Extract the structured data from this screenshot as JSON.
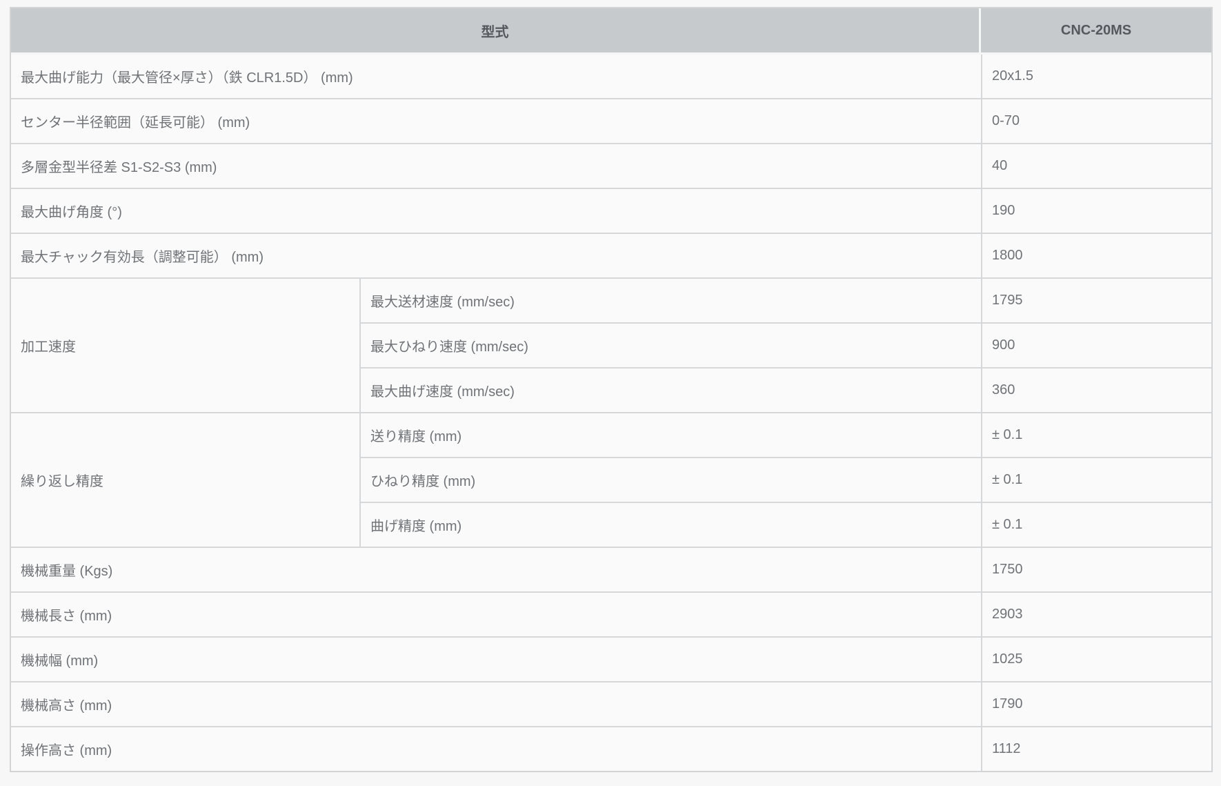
{
  "table": {
    "header": {
      "model_label": "型式",
      "model_value": "CNC-20MS"
    },
    "rows": [
      {
        "label": "最大曲げ能力（最大管径×厚さ）（鉄 CLR1.5D） (mm)",
        "value": "20x1.5"
      },
      {
        "label": "センター半径範囲（延長可能） (mm)",
        "value": "0-70"
      },
      {
        "label": "多層金型半径差 S1-S2-S3 (mm)",
        "value": "40"
      },
      {
        "label": "最大曲げ角度 (°)",
        "value": "190"
      },
      {
        "label": "最大チャック有効長（調整可能） (mm)",
        "value": "1800"
      },
      {
        "group": "加工速度",
        "subrows": [
          {
            "label": "最大送材速度 (mm/sec)",
            "value": "1795"
          },
          {
            "label": "最大ひねり速度 (mm/sec)",
            "value": "900"
          },
          {
            "label": "最大曲げ速度 (mm/sec)",
            "value": "360"
          }
        ]
      },
      {
        "group": "繰り返し精度",
        "subrows": [
          {
            "label": "送り精度 (mm)",
            "value": "± 0.1"
          },
          {
            "label": "ひねり精度 (mm)",
            "value": "± 0.1"
          },
          {
            "label": "曲げ精度 (mm)",
            "value": "± 0.1"
          }
        ]
      },
      {
        "label": "機械重量 (Kgs)",
        "value": "1750"
      },
      {
        "label": "機械長さ (mm)",
        "value": "2903"
      },
      {
        "label": "機械幅 (mm)",
        "value": "1025"
      },
      {
        "label": "機械高さ (mm)",
        "value": "1790"
      },
      {
        "label": "操作高さ (mm)",
        "value": "1112"
      }
    ]
  },
  "colors": {
    "page_background": "#f7f7f8",
    "row_background": "#fafafa",
    "header_background": "#c6cacd",
    "header_text": "#55595d",
    "body_text": "#6f7377",
    "border": "#d6d7d8"
  }
}
